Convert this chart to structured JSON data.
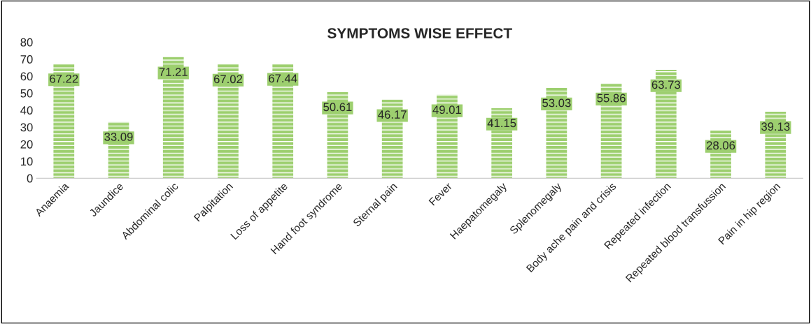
{
  "chart_data": {
    "type": "bar",
    "title": "SYMPTOMS WISE EFFECT",
    "categories": [
      "Anaemia",
      "Jaundice",
      "Abdominal colic",
      "Palpitation",
      "Loss of appetite",
      "Hand foot syndrome",
      "Sternal pain",
      "Fever",
      "Haepatomegaly",
      "Splenomegaly",
      "Body ache pain and crisis",
      "Repeated infection",
      "Repeated blood transfussion",
      "Pain in hip region"
    ],
    "values": [
      67.22,
      33.09,
      71.21,
      67.02,
      67.44,
      50.61,
      46.17,
      49.01,
      41.15,
      53.03,
      55.86,
      63.73,
      28.06,
      39.13
    ],
    "color": "#9dcf6f",
    "ylim": [
      0,
      80
    ],
    "yticks": [
      0,
      10,
      20,
      30,
      40,
      50,
      60,
      70,
      80
    ],
    "data_labels": true,
    "grid": false
  }
}
